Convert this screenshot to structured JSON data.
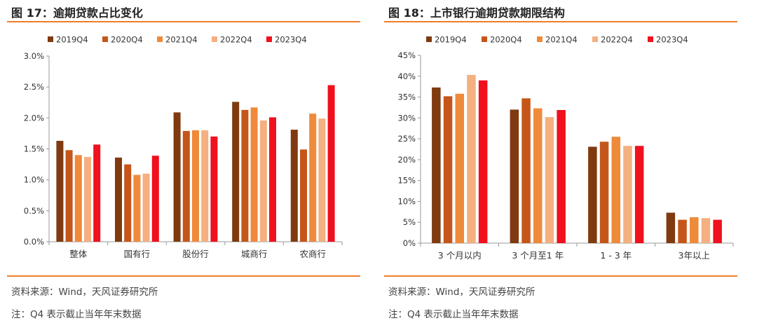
{
  "left": {
    "title": "图 17：逾期贷款占比变化",
    "source": "资料来源：Wind，天风证券研究所",
    "note": "注：Q4 表示截止当年年末数据"
  },
  "right": {
    "title": "图 18：上市银行逾期贷款期限结构",
    "source": "资料来源：Wind，天风证券研究所",
    "note": "注：Q4 表示截止当年年末数据"
  },
  "colors": [
    "#7f3a10",
    "#c5561a",
    "#ef8a3a",
    "#f4b080",
    "#f0101e"
  ],
  "chart_data": [
    {
      "type": "bar",
      "title": "",
      "xlabel": "",
      "ylabel": "",
      "categories": [
        "整体",
        "国有行",
        "股份行",
        "城商行",
        "农商行"
      ],
      "series": [
        {
          "name": "2019Q4",
          "values": [
            1.63,
            1.36,
            2.09,
            2.26,
            1.81
          ]
        },
        {
          "name": "2020Q4",
          "values": [
            1.48,
            1.25,
            1.79,
            2.13,
            1.49
          ]
        },
        {
          "name": "2021Q4",
          "values": [
            1.4,
            1.08,
            1.8,
            2.17,
            2.07
          ]
        },
        {
          "name": "2022Q4",
          "values": [
            1.37,
            1.1,
            1.8,
            1.96,
            1.99
          ]
        },
        {
          "name": "2023Q4",
          "values": [
            1.57,
            1.39,
            1.7,
            2.01,
            2.53
          ]
        }
      ],
      "ylim": [
        0,
        3.0
      ],
      "yticks": [
        "0.0%",
        "0.5%",
        "1.0%",
        "1.5%",
        "2.0%",
        "2.5%",
        "3.0%"
      ],
      "legend": "top",
      "grid": false
    },
    {
      "type": "bar",
      "title": "",
      "xlabel": "",
      "ylabel": "",
      "categories": [
        "3 个月以内",
        "3 个月至1 年",
        "1 - 3 年",
        "3年以上"
      ],
      "series": [
        {
          "name": "2019Q4",
          "values": [
            37.3,
            32.0,
            23.1,
            7.3
          ]
        },
        {
          "name": "2020Q4",
          "values": [
            35.2,
            34.7,
            24.3,
            5.6
          ]
        },
        {
          "name": "2021Q4",
          "values": [
            35.8,
            32.3,
            25.5,
            6.2
          ]
        },
        {
          "name": "2022Q4",
          "values": [
            40.3,
            30.2,
            23.3,
            6.0
          ]
        },
        {
          "name": "2023Q4",
          "values": [
            39.0,
            31.9,
            23.3,
            5.6
          ]
        }
      ],
      "ylim": [
        0,
        45
      ],
      "yticks": [
        "0%",
        "5%",
        "10%",
        "15%",
        "20%",
        "25%",
        "30%",
        "35%",
        "40%",
        "45%"
      ],
      "legend": "top",
      "grid": false
    }
  ]
}
